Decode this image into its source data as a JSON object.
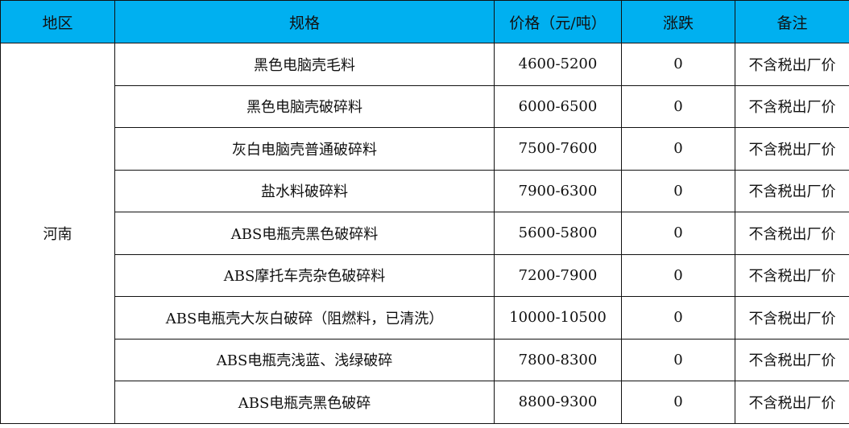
{
  "header": {
    "region": "地区",
    "spec": "规格",
    "price": "价格（元/吨）",
    "change": "涨跌",
    "note": "备注"
  },
  "colors": {
    "header_bg": "#00b0f0",
    "border": "#111111"
  },
  "region": "河南",
  "rows": [
    {
      "spec": "黑色电脑壳毛料",
      "price": "4600-5200",
      "change": "0",
      "note": "不含税出厂价"
    },
    {
      "spec": "黑色电脑壳破碎料",
      "price": "6000-6500",
      "change": "0",
      "note": "不含税出厂价"
    },
    {
      "spec": "灰白电脑壳普通破碎料",
      "price": "7500-7600",
      "change": "0",
      "note": "不含税出厂价"
    },
    {
      "spec": "盐水料破碎料",
      "price": "7900-6300",
      "change": "0",
      "note": "不含税出厂价"
    },
    {
      "spec": "ABS电瓶壳黑色破碎料",
      "price": "5600-5800",
      "change": "0",
      "note": "不含税出厂价"
    },
    {
      "spec": "ABS摩托车壳杂色破碎料",
      "price": "7200-7900",
      "change": "0",
      "note": "不含税出厂价"
    },
    {
      "spec": "ABS电瓶壳大灰白破碎（阻燃料，已清洗）",
      "price": "10000-10500",
      "change": "0",
      "note": "不含税出厂价"
    },
    {
      "spec": "ABS电瓶壳浅蓝、浅绿破碎",
      "price": "7800-8300",
      "change": "0",
      "note": "不含税出厂价"
    },
    {
      "spec": "ABS电瓶壳黑色破碎",
      "price": "8800-9300",
      "change": "0",
      "note": "不含税出厂价"
    }
  ]
}
